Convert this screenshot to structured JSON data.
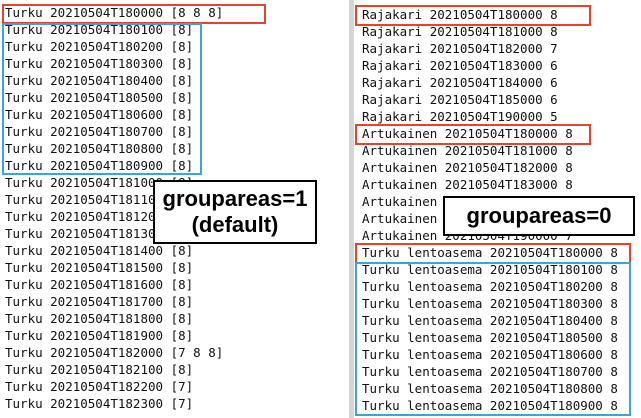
{
  "colors": {
    "highlight_red": "#e8412c",
    "highlight_blue": "#3aa6d8",
    "text": "#111111"
  },
  "left_panel": {
    "lines": [
      "Turku 20210504T180000 [8 8 8]",
      "Turku 20210504T180100 [8]",
      "Turku 20210504T180200 [8]",
      "Turku 20210504T180300 [8]",
      "Turku 20210504T180400 [8]",
      "Turku 20210504T180500 [8]",
      "Turku 20210504T180600 [8]",
      "Turku 20210504T180700 [8]",
      "Turku 20210504T180800 [8]",
      "Turku 20210504T180900 [8]",
      "Turku 20210504T181000 [8]",
      "Turku 20210504T181100 [8]",
      "Turku 20210504T181200 [8]",
      "Turku 20210504T181300 [8]",
      "Turku 20210504T181400 [8]",
      "Turku 20210504T181500 [8]",
      "Turku 20210504T181600 [8]",
      "Turku 20210504T181700 [8]",
      "Turku 20210504T181800 [8]",
      "Turku 20210504T181900 [8]",
      "Turku 20210504T182000 [7 8 8]",
      "Turku 20210504T182100 [8]",
      "Turku 20210504T182200 [7]",
      "Turku 20210504T182300 [7]"
    ],
    "callout_line1": "groupareas=1",
    "callout_line2": "(default)"
  },
  "right_panel": {
    "lines": [
      "Rajakari 20210504T180000 8",
      "Rajakari 20210504T181000 8",
      "Rajakari 20210504T182000 7",
      "Rajakari 20210504T183000 6",
      "Rajakari 20210504T184000 6",
      "Rajakari 20210504T185000 6",
      "Rajakari 20210504T190000 5",
      "Artukainen 20210504T180000 8",
      "Artukainen 20210504T181000 8",
      "Artukainen 20210504T182000 8",
      "Artukainen 20210504T183000 8",
      "Artukainen 20210504T184000 8",
      "Artukainen 20210504T185000 8",
      "Artukainen 20210504T190000 7",
      "Turku lentoasema 20210504T180000 8",
      "Turku lentoasema 20210504T180100 8",
      "Turku lentoasema 20210504T180200 8",
      "Turku lentoasema 20210504T180300 8",
      "Turku lentoasema 20210504T180400 8",
      "Turku lentoasema 20210504T180500 8",
      "Turku lentoasema 20210504T180600 8",
      "Turku lentoasema 20210504T180700 8",
      "Turku lentoasema 20210504T180800 8",
      "Turku lentoasema 20210504T180900 8"
    ],
    "callout": "groupareas=0"
  }
}
